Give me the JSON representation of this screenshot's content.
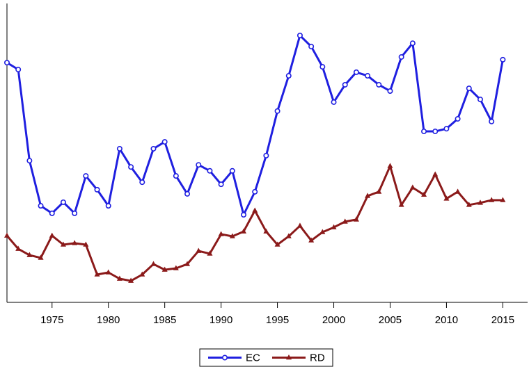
{
  "chart_data": {
    "type": "line",
    "x": [
      1971,
      1972,
      1973,
      1974,
      1975,
      1976,
      1977,
      1978,
      1979,
      1980,
      1981,
      1982,
      1983,
      1984,
      1985,
      1986,
      1987,
      1988,
      1989,
      1990,
      1991,
      1992,
      1993,
      1994,
      1995,
      1996,
      1997,
      1998,
      1999,
      2000,
      2001,
      2002,
      2003,
      2004,
      2005,
      2006,
      2007,
      2008,
      2009,
      2010,
      2011,
      2012,
      2013,
      2014,
      2015
    ],
    "series": [
      {
        "name": "EC",
        "color": "#1f1fe0",
        "marker": "circle",
        "values": [
          80.2,
          77.9,
          47.4,
          32.3,
          29.8,
          33.5,
          29.8,
          42.3,
          37.7,
          32.3,
          51.4,
          45.3,
          40.2,
          51.4,
          53.7,
          42.3,
          36.3,
          46.0,
          44.0,
          39.5,
          44.0,
          29.3,
          37.0,
          49.1,
          64.0,
          75.8,
          89.3,
          85.6,
          78.8,
          67.0,
          72.8,
          77.0,
          75.8,
          72.8,
          70.7,
          82.1,
          86.7,
          57.2,
          57.2,
          58.1,
          61.4,
          71.6,
          67.9,
          60.5,
          81.2
        ]
      },
      {
        "name": "RD",
        "color": "#8b1a1a",
        "marker": "triangle",
        "values": [
          22.3,
          17.9,
          15.8,
          14.9,
          22.3,
          19.3,
          19.8,
          19.3,
          9.3,
          10.0,
          7.9,
          7.2,
          9.3,
          12.8,
          10.9,
          11.4,
          12.8,
          17.2,
          16.3,
          22.8,
          22.1,
          23.7,
          30.7,
          23.7,
          19.3,
          22.1,
          25.6,
          20.7,
          23.5,
          25.1,
          27.0,
          27.7,
          35.6,
          37.0,
          45.6,
          32.6,
          38.4,
          36.0,
          42.8,
          34.7,
          37.0,
          32.6,
          33.3,
          34.2,
          34.2
        ]
      }
    ],
    "xlim": [
      1971,
      2017.2
    ],
    "xticks": [
      1975,
      1980,
      1985,
      1990,
      1995,
      2000,
      2005,
      2010,
      2015
    ],
    "ylim": [
      0,
      100
    ],
    "legend": "bottom"
  }
}
